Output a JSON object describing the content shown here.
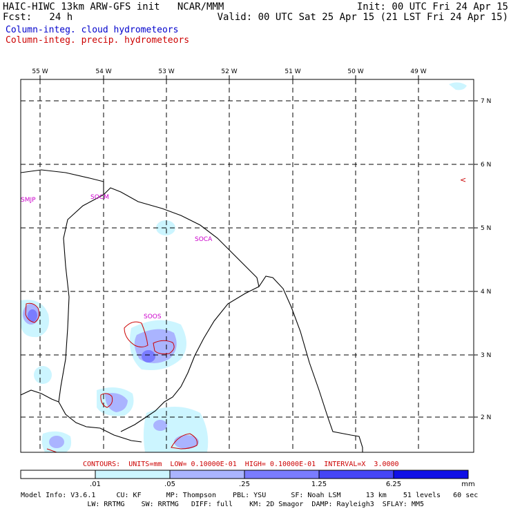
{
  "header": {
    "left_line1": "HAIC-HIWC 13km ARW-GFS init   NCAR/MMM",
    "left_line2": "Fcst:   24 h",
    "right_line1": "Init: 00 UTC Fri 24 Apr 15",
    "right_line2": "Valid: 00 UTC Sat 25 Apr 15 (21 LST Fri 24 Apr 15)",
    "legend_cloud": "Column-integ. cloud hydrometeors",
    "legend_precip": "Column-integ. precip. hydrometeors"
  },
  "map": {
    "lon_labels": [
      "55 W",
      "54 W",
      "53 W",
      "52 W",
      "51 W",
      "50 W",
      "49 W"
    ],
    "lat_labels": [
      "7 N",
      "6 N",
      "5 N",
      "4 N",
      "3 N",
      "2 N"
    ],
    "stations": [
      "SMJP",
      "SOCM",
      "SOCA",
      "SOOS"
    ],
    "wind_glyph": "<"
  },
  "contours": {
    "text": "CONTOURS:  UNITS=mm  LOW= 0.10000E-01  HIGH= 0.10000E-01  INTERVAL=X  3.0000",
    "color": "#cc0000"
  },
  "colorbar": {
    "tick_labels": [
      ".01",
      ".05",
      ".25",
      "1.25",
      "6.25"
    ],
    "unit": "mm",
    "colors": [
      "#ffffff",
      "#ccf5ff",
      "#aab4ff",
      "#7a7cff",
      "#4545f5",
      "#1010e6"
    ]
  },
  "model_info": {
    "line1": "Model Info: V3.6.1     CU: KF      MP: Thompson    PBL: YSU      SF: Noah LSM      13 km    51 levels   60 sec",
    "line2": "                LW: RRTMG    SW: RRTMG   DIFF: full    KM: 2D Smagor  DAMP: Rayleigh3  SFLAY: MM5"
  },
  "colors": {
    "cloud_legend": "#0000cc",
    "precip_legend": "#cc0000",
    "station": "#cc00cc"
  }
}
